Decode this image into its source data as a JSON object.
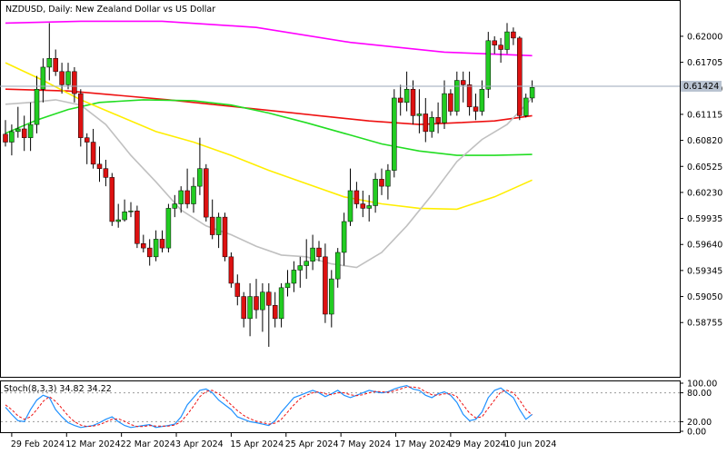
{
  "chart_data": {
    "type": "candlestick",
    "title": "NZDUSD, Daily:  New Zealand Dollar vs US Dollar",
    "current_price_label": "0.61424",
    "ylim": [
      0.5815,
      0.6237
    ],
    "y_ticks": [
      "0.62000",
      "0.61705",
      "0.61410",
      "0.61115",
      "0.60820",
      "0.60525",
      "0.60230",
      "0.59935",
      "0.59640",
      "0.59345",
      "0.59050",
      "0.58755"
    ],
    "x_tick_labels": [
      "29 Feb 2024",
      "12 Mar 2024",
      "22 Mar 2024",
      "3 Apr 2024",
      "15 Apr 2024",
      "25 Apr 2024",
      "7 May 2024",
      "17 May 2024",
      "29 May 2024",
      "10 Jun 2024"
    ],
    "candles": [
      {
        "o": 0.6089,
        "h": 0.6105,
        "l": 0.6075,
        "c": 0.608
      },
      {
        "o": 0.608,
        "h": 0.61,
        "l": 0.6065,
        "c": 0.6092
      },
      {
        "o": 0.6092,
        "h": 0.612,
        "l": 0.6085,
        "c": 0.6095
      },
      {
        "o": 0.6095,
        "h": 0.611,
        "l": 0.607,
        "c": 0.6085
      },
      {
        "o": 0.6085,
        "h": 0.6125,
        "l": 0.607,
        "c": 0.61
      },
      {
        "o": 0.61,
        "h": 0.6155,
        "l": 0.609,
        "c": 0.614
      },
      {
        "o": 0.614,
        "h": 0.6175,
        "l": 0.6125,
        "c": 0.6165
      },
      {
        "o": 0.6165,
        "h": 0.6215,
        "l": 0.615,
        "c": 0.6175
      },
      {
        "o": 0.6175,
        "h": 0.6185,
        "l": 0.6155,
        "c": 0.616
      },
      {
        "o": 0.616,
        "h": 0.617,
        "l": 0.6135,
        "c": 0.6145
      },
      {
        "o": 0.6145,
        "h": 0.617,
        "l": 0.614,
        "c": 0.616
      },
      {
        "o": 0.616,
        "h": 0.6165,
        "l": 0.6125,
        "c": 0.6135
      },
      {
        "o": 0.6135,
        "h": 0.614,
        "l": 0.6075,
        "c": 0.6085
      },
      {
        "o": 0.6085,
        "h": 0.609,
        "l": 0.6055,
        "c": 0.608
      },
      {
        "o": 0.608,
        "h": 0.6095,
        "l": 0.605,
        "c": 0.6055
      },
      {
        "o": 0.6055,
        "h": 0.6075,
        "l": 0.6035,
        "c": 0.605
      },
      {
        "o": 0.605,
        "h": 0.606,
        "l": 0.603,
        "c": 0.604
      },
      {
        "o": 0.604,
        "h": 0.6045,
        "l": 0.5985,
        "c": 0.599
      },
      {
        "o": 0.599,
        "h": 0.601,
        "l": 0.5983,
        "c": 0.5992
      },
      {
        "o": 0.5992,
        "h": 0.6015,
        "l": 0.599,
        "c": 0.6001
      },
      {
        "o": 0.6001,
        "h": 0.6012,
        "l": 0.5995,
        "c": 0.6002
      },
      {
        "o": 0.6002,
        "h": 0.6008,
        "l": 0.596,
        "c": 0.5965
      },
      {
        "o": 0.5965,
        "h": 0.5975,
        "l": 0.5955,
        "c": 0.596
      },
      {
        "o": 0.596,
        "h": 0.597,
        "l": 0.594,
        "c": 0.595
      },
      {
        "o": 0.595,
        "h": 0.598,
        "l": 0.5945,
        "c": 0.597
      },
      {
        "o": 0.597,
        "h": 0.598,
        "l": 0.5955,
        "c": 0.596
      },
      {
        "o": 0.596,
        "h": 0.601,
        "l": 0.5955,
        "c": 0.6005
      },
      {
        "o": 0.6005,
        "h": 0.602,
        "l": 0.5995,
        "c": 0.601
      },
      {
        "o": 0.601,
        "h": 0.603,
        "l": 0.6,
        "c": 0.6025
      },
      {
        "o": 0.6025,
        "h": 0.605,
        "l": 0.6005,
        "c": 0.601
      },
      {
        "o": 0.601,
        "h": 0.604,
        "l": 0.6,
        "c": 0.603
      },
      {
        "o": 0.603,
        "h": 0.6085,
        "l": 0.602,
        "c": 0.605
      },
      {
        "o": 0.605,
        "h": 0.6055,
        "l": 0.599,
        "c": 0.5995
      },
      {
        "o": 0.5995,
        "h": 0.6015,
        "l": 0.597,
        "c": 0.5975
      },
      {
        "o": 0.5975,
        "h": 0.6,
        "l": 0.596,
        "c": 0.5995
      },
      {
        "o": 0.5995,
        "h": 0.6,
        "l": 0.5945,
        "c": 0.595
      },
      {
        "o": 0.595,
        "h": 0.5955,
        "l": 0.5915,
        "c": 0.592
      },
      {
        "o": 0.592,
        "h": 0.593,
        "l": 0.5895,
        "c": 0.5905
      },
      {
        "o": 0.5905,
        "h": 0.591,
        "l": 0.587,
        "c": 0.588
      },
      {
        "o": 0.588,
        "h": 0.592,
        "l": 0.586,
        "c": 0.5905
      },
      {
        "o": 0.5905,
        "h": 0.5925,
        "l": 0.588,
        "c": 0.589
      },
      {
        "o": 0.589,
        "h": 0.592,
        "l": 0.5865,
        "c": 0.591
      },
      {
        "o": 0.591,
        "h": 0.592,
        "l": 0.5848,
        "c": 0.5895
      },
      {
        "o": 0.5895,
        "h": 0.591,
        "l": 0.587,
        "c": 0.588
      },
      {
        "o": 0.588,
        "h": 0.592,
        "l": 0.587,
        "c": 0.5915
      },
      {
        "o": 0.5915,
        "h": 0.5935,
        "l": 0.5905,
        "c": 0.592
      },
      {
        "o": 0.592,
        "h": 0.5945,
        "l": 0.591,
        "c": 0.5935
      },
      {
        "o": 0.5935,
        "h": 0.595,
        "l": 0.5915,
        "c": 0.594
      },
      {
        "o": 0.594,
        "h": 0.597,
        "l": 0.5925,
        "c": 0.5945
      },
      {
        "o": 0.5945,
        "h": 0.5975,
        "l": 0.5935,
        "c": 0.596
      },
      {
        "o": 0.596,
        "h": 0.5968,
        "l": 0.5945,
        "c": 0.595
      },
      {
        "o": 0.595,
        "h": 0.5965,
        "l": 0.5875,
        "c": 0.5885
      },
      {
        "o": 0.5885,
        "h": 0.5935,
        "l": 0.587,
        "c": 0.5925
      },
      {
        "o": 0.5925,
        "h": 0.596,
        "l": 0.5915,
        "c": 0.5955
      },
      {
        "o": 0.5955,
        "h": 0.6,
        "l": 0.594,
        "c": 0.599
      },
      {
        "o": 0.599,
        "h": 0.605,
        "l": 0.5985,
        "c": 0.6025
      },
      {
        "o": 0.6025,
        "h": 0.6035,
        "l": 0.6005,
        "c": 0.601
      },
      {
        "o": 0.601,
        "h": 0.6025,
        "l": 0.5995,
        "c": 0.6005
      },
      {
        "o": 0.6005,
        "h": 0.602,
        "l": 0.599,
        "c": 0.6008
      },
      {
        "o": 0.6008,
        "h": 0.6045,
        "l": 0.6,
        "c": 0.6038
      },
      {
        "o": 0.6038,
        "h": 0.605,
        "l": 0.602,
        "c": 0.603
      },
      {
        "o": 0.603,
        "h": 0.6055,
        "l": 0.6015,
        "c": 0.6048
      },
      {
        "o": 0.6048,
        "h": 0.614,
        "l": 0.604,
        "c": 0.613
      },
      {
        "o": 0.613,
        "h": 0.6145,
        "l": 0.611,
        "c": 0.6125
      },
      {
        "o": 0.6125,
        "h": 0.616,
        "l": 0.6115,
        "c": 0.614
      },
      {
        "o": 0.614,
        "h": 0.615,
        "l": 0.61,
        "c": 0.611
      },
      {
        "o": 0.611,
        "h": 0.614,
        "l": 0.609,
        "c": 0.6112
      },
      {
        "o": 0.6112,
        "h": 0.613,
        "l": 0.608,
        "c": 0.6092
      },
      {
        "o": 0.6092,
        "h": 0.6115,
        "l": 0.6085,
        "c": 0.6108
      },
      {
        "o": 0.6108,
        "h": 0.6125,
        "l": 0.609,
        "c": 0.6102
      },
      {
        "o": 0.6102,
        "h": 0.615,
        "l": 0.6095,
        "c": 0.6135
      },
      {
        "o": 0.6135,
        "h": 0.614,
        "l": 0.611,
        "c": 0.6115
      },
      {
        "o": 0.6115,
        "h": 0.616,
        "l": 0.611,
        "c": 0.615
      },
      {
        "o": 0.615,
        "h": 0.616,
        "l": 0.6125,
        "c": 0.6145
      },
      {
        "o": 0.6145,
        "h": 0.616,
        "l": 0.611,
        "c": 0.612
      },
      {
        "o": 0.612,
        "h": 0.6135,
        "l": 0.6105,
        "c": 0.6115
      },
      {
        "o": 0.6115,
        "h": 0.615,
        "l": 0.611,
        "c": 0.614
      },
      {
        "o": 0.614,
        "h": 0.6205,
        "l": 0.613,
        "c": 0.6195
      },
      {
        "o": 0.6195,
        "h": 0.62,
        "l": 0.618,
        "c": 0.619
      },
      {
        "o": 0.619,
        "h": 0.6198,
        "l": 0.617,
        "c": 0.6185
      },
      {
        "o": 0.6185,
        "h": 0.6215,
        "l": 0.618,
        "c": 0.6205
      },
      {
        "o": 0.6205,
        "h": 0.621,
        "l": 0.619,
        "c": 0.6198
      },
      {
        "o": 0.6198,
        "h": 0.62,
        "l": 0.6105,
        "c": 0.611
      },
      {
        "o": 0.611,
        "h": 0.6135,
        "l": 0.6108,
        "c": 0.613
      },
      {
        "o": 0.613,
        "h": 0.615,
        "l": 0.6125,
        "c": 0.6142
      }
    ],
    "moving_averages": [
      {
        "color": "#ff00ff",
        "values": [
          [
            0,
            0.6215
          ],
          [
            12,
            0.6217
          ],
          [
            25,
            0.6217
          ],
          [
            40,
            0.621
          ],
          [
            55,
            0.6193
          ],
          [
            70,
            0.6182
          ],
          [
            84,
            0.6178
          ]
        ]
      },
      {
        "color": "#ee1111",
        "values": [
          [
            0,
            0.614
          ],
          [
            10,
            0.6138
          ],
          [
            18,
            0.6133
          ],
          [
            26,
            0.6128
          ],
          [
            34,
            0.6122
          ],
          [
            42,
            0.6116
          ],
          [
            50,
            0.611
          ],
          [
            58,
            0.6104
          ],
          [
            66,
            0.61
          ],
          [
            72,
            0.6102
          ],
          [
            78,
            0.6104
          ],
          [
            84,
            0.611
          ]
        ]
      },
      {
        "color": "#22dd22",
        "values": [
          [
            0,
            0.609
          ],
          [
            5,
            0.6105
          ],
          [
            10,
            0.6117
          ],
          [
            15,
            0.6125
          ],
          [
            22,
            0.6128
          ],
          [
            30,
            0.6127
          ],
          [
            36,
            0.6122
          ],
          [
            42,
            0.6113
          ],
          [
            48,
            0.6102
          ],
          [
            54,
            0.609
          ],
          [
            60,
            0.6078
          ],
          [
            66,
            0.607
          ],
          [
            72,
            0.6065
          ],
          [
            78,
            0.6065
          ],
          [
            84,
            0.6066
          ]
        ]
      },
      {
        "color": "#ffee00",
        "values": [
          [
            0,
            0.617
          ],
          [
            6,
            0.615
          ],
          [
            12,
            0.6128
          ],
          [
            18,
            0.611
          ],
          [
            24,
            0.6092
          ],
          [
            30,
            0.608
          ],
          [
            36,
            0.6065
          ],
          [
            42,
            0.6048
          ],
          [
            48,
            0.6033
          ],
          [
            54,
            0.6018
          ],
          [
            60,
            0.601
          ],
          [
            66,
            0.6005
          ],
          [
            72,
            0.6004
          ],
          [
            78,
            0.6018
          ],
          [
            84,
            0.6037
          ]
        ]
      },
      {
        "color": "#c0c0c0",
        "values": [
          [
            0,
            0.6123
          ],
          [
            4,
            0.6125
          ],
          [
            8,
            0.6128
          ],
          [
            12,
            0.6122
          ],
          [
            16,
            0.61
          ],
          [
            20,
            0.6065
          ],
          [
            24,
            0.6035
          ],
          [
            28,
            0.6003
          ],
          [
            32,
            0.5985
          ],
          [
            36,
            0.5975
          ],
          [
            40,
            0.5962
          ],
          [
            44,
            0.5952
          ],
          [
            48,
            0.595
          ],
          [
            52,
            0.5942
          ],
          [
            56,
            0.5938
          ],
          [
            60,
            0.5955
          ],
          [
            64,
            0.5985
          ],
          [
            68,
            0.602
          ],
          [
            72,
            0.6058
          ],
          [
            76,
            0.6083
          ],
          [
            80,
            0.61
          ],
          [
            84,
            0.613
          ]
        ]
      }
    ],
    "stoch": {
      "label": "Stoch(8,3,3) 34.82 34.22",
      "ticks": [
        "100.00",
        "80.00",
        "20.00",
        "0.00"
      ],
      "k": [
        50,
        35,
        22,
        20,
        45,
        65,
        75,
        70,
        45,
        30,
        18,
        12,
        8,
        10,
        12,
        18,
        25,
        30,
        20,
        12,
        8,
        10,
        12,
        14,
        8,
        10,
        12,
        15,
        30,
        55,
        70,
        85,
        88,
        80,
        65,
        55,
        45,
        30,
        25,
        20,
        18,
        15,
        12,
        22,
        40,
        55,
        70,
        75,
        80,
        85,
        80,
        72,
        78,
        85,
        75,
        70,
        75,
        80,
        85,
        82,
        80,
        82,
        88,
        92,
        95,
        88,
        85,
        75,
        70,
        78,
        82,
        75,
        60,
        35,
        22,
        25,
        40,
        70,
        85,
        90,
        80,
        70,
        45,
        25,
        35
      ],
      "d": [
        55,
        45,
        32,
        25,
        30,
        45,
        62,
        72,
        62,
        48,
        32,
        20,
        13,
        10,
        11,
        14,
        19,
        25,
        26,
        21,
        14,
        10,
        10,
        12,
        11,
        11,
        11,
        13,
        20,
        35,
        52,
        72,
        83,
        85,
        78,
        68,
        55,
        43,
        33,
        26,
        21,
        18,
        15,
        17,
        25,
        40,
        55,
        68,
        75,
        80,
        82,
        78,
        76,
        80,
        80,
        76,
        74,
        76,
        80,
        83,
        82,
        81,
        84,
        88,
        92,
        92,
        90,
        82,
        76,
        75,
        78,
        78,
        72,
        55,
        38,
        28,
        30,
        48,
        65,
        82,
        85,
        80,
        65,
        45,
        34
      ]
    }
  }
}
